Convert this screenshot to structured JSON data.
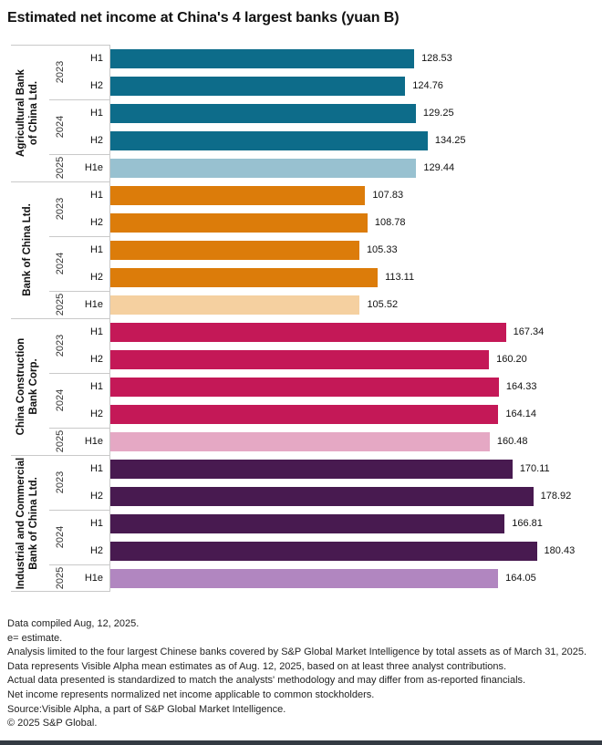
{
  "title": "Estimated net income at China's 4 largest banks (yuan B)",
  "chart_data": {
    "type": "bar",
    "orientation": "horizontal",
    "value_unit": "yuan B",
    "xlim": [
      0,
      208
    ],
    "grid": false,
    "value_labels": "end-of-bar",
    "axis_levels": [
      "bank",
      "year",
      "period"
    ],
    "groups": [
      {
        "bank": "Agricultural Bank of China Ltd.",
        "bank_label_lines": [
          "Agricultural Bank",
          "of China Ltd."
        ],
        "color": "#0d6c8a",
        "estimate_color": "#98c1d0",
        "years": [
          {
            "year": "2023",
            "periods": [
              {
                "label": "H1",
                "value": 128.53,
                "display": "128.53",
                "estimate": false
              },
              {
                "label": "H2",
                "value": 124.76,
                "display": "124.76",
                "estimate": false
              }
            ]
          },
          {
            "year": "2024",
            "periods": [
              {
                "label": "H1",
                "value": 129.25,
                "display": "129.25",
                "estimate": false
              },
              {
                "label": "H2",
                "value": 134.25,
                "display": "134.25",
                "estimate": false
              }
            ]
          },
          {
            "year": "2025",
            "periods": [
              {
                "label": "H1e",
                "value": 129.44,
                "display": "129.44",
                "estimate": true
              }
            ]
          }
        ]
      },
      {
        "bank": "Bank of China Ltd.",
        "bank_label_lines": [
          "Bank of China Ltd."
        ],
        "color": "#dc7c0a",
        "estimate_color": "#f5d0a0",
        "years": [
          {
            "year": "2023",
            "periods": [
              {
                "label": "H1",
                "value": 107.83,
                "display": "107.83",
                "estimate": false
              },
              {
                "label": "H2",
                "value": 108.78,
                "display": "108.78",
                "estimate": false
              }
            ]
          },
          {
            "year": "2024",
            "periods": [
              {
                "label": "H1",
                "value": 105.33,
                "display": "105.33",
                "estimate": false
              },
              {
                "label": "H2",
                "value": 113.11,
                "display": "113.11",
                "estimate": false
              }
            ]
          },
          {
            "year": "2025",
            "periods": [
              {
                "label": "H1e",
                "value": 105.52,
                "display": "105.52",
                "estimate": true
              }
            ]
          }
        ]
      },
      {
        "bank": "China Construction Bank Corp.",
        "bank_label_lines": [
          "China Construction",
          "Bank Corp."
        ],
        "color": "#c41857",
        "estimate_color": "#e5a8c4",
        "years": [
          {
            "year": "2023",
            "periods": [
              {
                "label": "H1",
                "value": 167.34,
                "display": "167.34",
                "estimate": false
              },
              {
                "label": "H2",
                "value": 160.2,
                "display": "160.20",
                "estimate": false
              }
            ]
          },
          {
            "year": "2024",
            "periods": [
              {
                "label": "H1",
                "value": 164.33,
                "display": "164.33",
                "estimate": false
              },
              {
                "label": "H2",
                "value": 164.14,
                "display": "164.14",
                "estimate": false
              }
            ]
          },
          {
            "year": "2025",
            "periods": [
              {
                "label": "H1e",
                "value": 160.48,
                "display": "160.48",
                "estimate": true
              }
            ]
          }
        ]
      },
      {
        "bank": "Industrial and Commercial Bank of China Ltd.",
        "bank_label_lines": [
          "Industrial and Commercial",
          "Bank of China Ltd."
        ],
        "color": "#481a50",
        "estimate_color": "#b186c0",
        "years": [
          {
            "year": "2023",
            "periods": [
              {
                "label": "H1",
                "value": 170.11,
                "display": "170.11",
                "estimate": false
              },
              {
                "label": "H2",
                "value": 178.92,
                "display": "178.92",
                "estimate": false
              }
            ]
          },
          {
            "year": "2024",
            "periods": [
              {
                "label": "H1",
                "value": 166.81,
                "display": "166.81",
                "estimate": false
              },
              {
                "label": "H2",
                "value": 180.43,
                "display": "180.43",
                "estimate": false
              }
            ]
          },
          {
            "year": "2025",
            "periods": [
              {
                "label": "H1e",
                "value": 164.05,
                "display": "164.05",
                "estimate": true
              }
            ]
          }
        ]
      }
    ]
  },
  "footnotes": [
    "Data compiled Aug, 12, 2025.",
    "e= estimate.",
    "Analysis limited to the four largest Chinese banks covered by S&P Global Market Intelligence by total assets as of March 31, 2025.",
    "Data represents Visible Alpha mean estimates as of Aug. 12, 2025, based on at least three analyst contributions.",
    "Actual data presented is standardized to match the analysts' methodology and may differ from as-reported financials.",
    "Net income represents normalized net income applicable to common stockholders.",
    "Source:Visible Alpha, a part of S&P Global Market Intelligence.",
    "© 2025 S&P Global."
  ],
  "colors": {
    "axis_line": "#c9c9c9",
    "text": "#1a1a1a",
    "brand_bar": "#333a42"
  }
}
